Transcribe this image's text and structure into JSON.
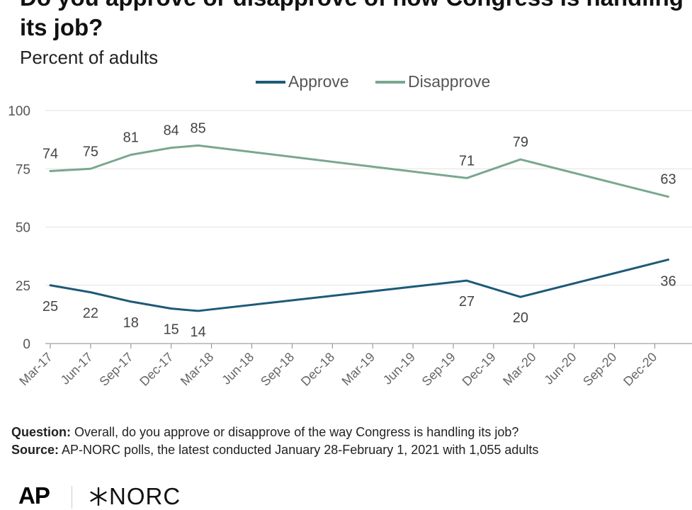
{
  "header": {
    "title": "Do you approve or disapprove of how Congress is handling its job?",
    "subtitle": "Percent of adults"
  },
  "colors": {
    "approve": "#1d5a78",
    "disapprove": "#79a78f",
    "grid": "#e2e2e2",
    "axis": "#888888"
  },
  "chart_data": {
    "type": "line",
    "title": "Do you approve or disapprove of how Congress is handling its job?",
    "subtitle": "Percent of adults",
    "x_tick_labels": [
      "Mar-17",
      "Jun-17",
      "Sep-17",
      "Dec-17",
      "Mar-18",
      "Jun-18",
      "Sep-18",
      "Dec-18",
      "Mar-19",
      "Jun-19",
      "Sep-19",
      "Dec-19",
      "Mar-20",
      "Jun-20",
      "Sep-20",
      "Dec-20"
    ],
    "ylim": [
      0,
      100
    ],
    "y_ticks": [
      0,
      25,
      50,
      75,
      100
    ],
    "grid": true,
    "legend_position": "top",
    "series": [
      {
        "name": "Approve",
        "color": "#1d5a78",
        "points": [
          {
            "x": "2017-03",
            "y": 25
          },
          {
            "x": "2017-06",
            "y": 22
          },
          {
            "x": "2017-09",
            "y": 18
          },
          {
            "x": "2017-12",
            "y": 15
          },
          {
            "x": "2018-02",
            "y": 14
          },
          {
            "x": "2019-10",
            "y": 27
          },
          {
            "x": "2020-02",
            "y": 20
          },
          {
            "x": "2021-01",
            "y": 36
          }
        ]
      },
      {
        "name": "Disapprove",
        "color": "#79a78f",
        "points": [
          {
            "x": "2017-03",
            "y": 74
          },
          {
            "x": "2017-06",
            "y": 75
          },
          {
            "x": "2017-09",
            "y": 81
          },
          {
            "x": "2017-12",
            "y": 84
          },
          {
            "x": "2018-02",
            "y": 85
          },
          {
            "x": "2019-10",
            "y": 71
          },
          {
            "x": "2020-02",
            "y": 79
          },
          {
            "x": "2021-01",
            "y": 63
          }
        ]
      }
    ]
  },
  "footer": {
    "question_label": "Question:",
    "question_text": "Overall, do you approve or disapprove of the way Congress is handling its job?",
    "source_label": "Source:",
    "source_text": "AP-NORC polls, the latest conducted January 28-February 1, 2021 with 1,055 adults"
  },
  "logos": {
    "ap": "AP",
    "norc": "NORC"
  }
}
